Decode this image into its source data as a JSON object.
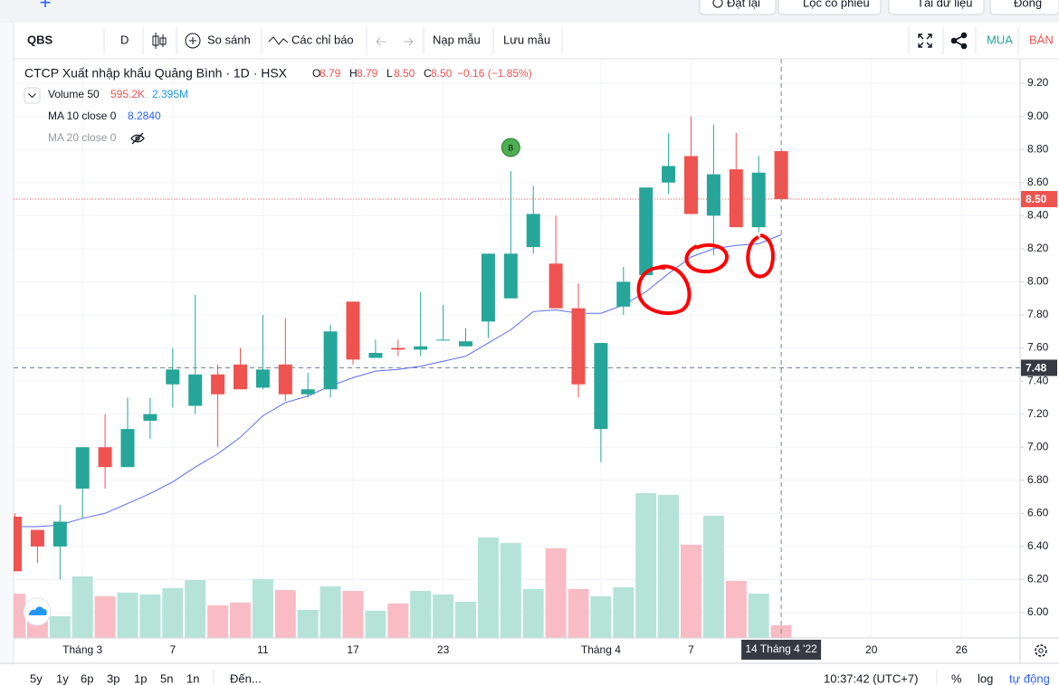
{
  "top_bar": {
    "plus": "+",
    "buttons": [
      "Đặt lại",
      "Lọc cổ phiếu",
      "Tải dữ liệu",
      "Đóng"
    ]
  },
  "toolbar": {
    "symbol": "QBS",
    "interval": "D",
    "compare": "So sánh",
    "indicators": "Các chỉ báo",
    "load": "Nạp mẫu",
    "save": "Lưu mẫu",
    "buy": "MUA",
    "sell": "BÁN"
  },
  "chart_data": {
    "type": "candlestick",
    "legend": {
      "symbol": "CTCP Xuất nhập khẩu Quảng Bình · 1D · HSX",
      "ohlc": [
        {
          "key": "O",
          "value": "8.79"
        },
        {
          "key": "H",
          "value": "8.79"
        },
        {
          "key": "L",
          "value": "8.50"
        },
        {
          "key": "C",
          "value": "8.50"
        }
      ],
      "change": "−0.16 (−1.85%)",
      "volume": {
        "name": "Volume 50",
        "value": "595.2K",
        "ma": "2.395M"
      },
      "indicators": [
        {
          "name": "MA 10 close 0",
          "value": "8.2840"
        },
        {
          "name": "MA 20 close 0"
        }
      ]
    },
    "categories": [
      null,
      null,
      null,
      "Tháng 3",
      null,
      null,
      null,
      "7",
      null,
      null,
      null,
      "11",
      null,
      null,
      null,
      "17",
      null,
      null,
      null,
      "23",
      null,
      null,
      null,
      null,
      null,
      null,
      "Tháng 4",
      null,
      null,
      null,
      "7",
      null,
      null,
      null,
      null,
      null,
      null,
      null,
      "20",
      null,
      null,
      null,
      "26"
    ],
    "open": [
      6.58,
      6.5,
      6.4,
      6.75,
      7.0,
      6.88,
      7.16,
      7.38,
      7.25,
      7.44,
      7.5,
      7.36,
      7.5,
      7.32,
      7.35,
      7.88,
      7.54,
      7.6,
      7.59,
      7.65,
      7.61,
      7.76,
      7.9,
      8.21,
      8.11,
      7.84,
      7.11,
      7.85,
      8.04,
      8.6,
      8.76,
      8.4,
      8.68,
      8.33,
      8.79,
      null,
      null,
      null,
      null,
      null,
      null,
      null,
      null
    ],
    "high": [
      6.6,
      6.5,
      6.65,
      7.0,
      7.2,
      7.3,
      7.3,
      7.6,
      7.92,
      7.5,
      7.6,
      7.8,
      7.78,
      7.45,
      7.74,
      7.88,
      7.65,
      7.65,
      7.94,
      7.86,
      7.72,
      8.17,
      8.67,
      8.58,
      8.4,
      7.99,
      7.63,
      8.09,
      8.57,
      8.9,
      9.0,
      8.95,
      8.9,
      8.76,
      8.79,
      null,
      null,
      null,
      null,
      null,
      null,
      null,
      null
    ],
    "low": [
      6.25,
      6.3,
      6.2,
      6.57,
      6.75,
      6.88,
      7.05,
      7.24,
      7.2,
      7.0,
      7.35,
      7.35,
      7.28,
      7.3,
      7.3,
      7.5,
      7.54,
      7.55,
      7.55,
      7.65,
      7.61,
      7.66,
      7.9,
      8.17,
      7.84,
      7.3,
      6.91,
      7.8,
      8.04,
      8.53,
      8.41,
      8.16,
      8.33,
      8.3,
      8.5,
      null,
      null,
      null,
      null,
      null,
      null,
      null,
      null
    ],
    "close": [
      6.25,
      6.4,
      6.55,
      7.0,
      6.88,
      7.11,
      7.2,
      7.47,
      7.44,
      7.32,
      7.35,
      7.47,
      7.32,
      7.35,
      7.7,
      7.53,
      7.57,
      7.59,
      7.61,
      7.65,
      7.64,
      8.17,
      8.17,
      8.41,
      7.84,
      7.38,
      7.63,
      8.0,
      8.57,
      8.7,
      8.41,
      8.65,
      8.33,
      8.66,
      8.5,
      null,
      null,
      null,
      null,
      null,
      null,
      null,
      null
    ],
    "up_color": "#26a69a",
    "down_color": "#ef5350",
    "ma": {
      "name": "MA 10",
      "color": "#5c6bf0",
      "values": [
        6.52,
        6.52,
        6.53,
        6.57,
        6.6,
        6.66,
        6.72,
        6.79,
        6.88,
        6.96,
        7.06,
        7.19,
        7.27,
        7.31,
        7.37,
        7.42,
        7.46,
        7.47,
        7.49,
        7.52,
        7.55,
        7.63,
        7.71,
        7.82,
        7.83,
        7.81,
        7.81,
        7.86,
        7.94,
        8.05,
        8.15,
        8.2,
        8.22,
        8.23,
        8.284,
        null,
        null,
        null,
        null,
        null,
        null,
        null,
        null
      ]
    },
    "volume": {
      "up_color": "#b5e3d8",
      "down_color": "#f9bcc4",
      "lim": [
        0,
        27200000
      ],
      "values": [
        2080000,
        1280000,
        1020000,
        2890000,
        1960000,
        2130000,
        2040000,
        2340000,
        2720000,
        1530000,
        1660000,
        2760000,
        2250000,
        1320000,
        2420000,
        2210000,
        1280000,
        1620000,
        2210000,
        2040000,
        1700000,
        4720000,
        4460000,
        2300000,
        4210000,
        2300000,
        1960000,
        2380000,
        6800000,
        6720000,
        4380000,
        5740000,
        2680000,
        2080000,
        595200,
        null,
        null,
        null,
        null,
        null,
        null,
        null,
        null
      ]
    },
    "markers": [
      {
        "index": 22,
        "label": "B",
        "color": "#4caf50"
      }
    ],
    "ylim": [
      5.847,
      9.348
    ],
    "yticks": [
      {
        "value": 6.0,
        "label": "6.00"
      },
      {
        "value": 6.2,
        "label": "6.20"
      },
      {
        "value": 6.4,
        "label": "6.40"
      },
      {
        "value": 6.6,
        "label": "6.60"
      },
      {
        "value": 6.8,
        "label": "6.80"
      },
      {
        "value": 7.0,
        "label": "7.00"
      },
      {
        "value": 7.2,
        "label": "7.20"
      },
      {
        "value": 7.4,
        "label": "7.40"
      },
      {
        "value": 7.6,
        "label": "7.60"
      },
      {
        "value": 7.8,
        "label": "7.80"
      },
      {
        "value": 8.0,
        "label": "8.00"
      },
      {
        "value": 8.2,
        "label": "8.20"
      },
      {
        "value": 8.4,
        "label": "8.40"
      },
      {
        "value": 8.6,
        "label": "8.60"
      },
      {
        "value": 8.8,
        "label": "8.80"
      },
      {
        "value": 9.0,
        "label": "9.00"
      },
      {
        "value": 9.2,
        "label": "9.20"
      }
    ],
    "grid": true,
    "last_price": {
      "value": 8.5,
      "label": "8.50"
    },
    "crosshair": {
      "index": 34,
      "x_label": "14 Tháng 4 '22",
      "y": {
        "value": 7.48,
        "label": "7.48"
      }
    }
  },
  "bottom_bar": {
    "ranges": [
      "5y",
      "1y",
      "6p",
      "3p",
      "1p",
      "5n",
      "1n"
    ],
    "goto": "Đến...",
    "time": "10:37:42 (UTC+7)",
    "percent": "%",
    "log": "log",
    "auto": "tự động"
  }
}
